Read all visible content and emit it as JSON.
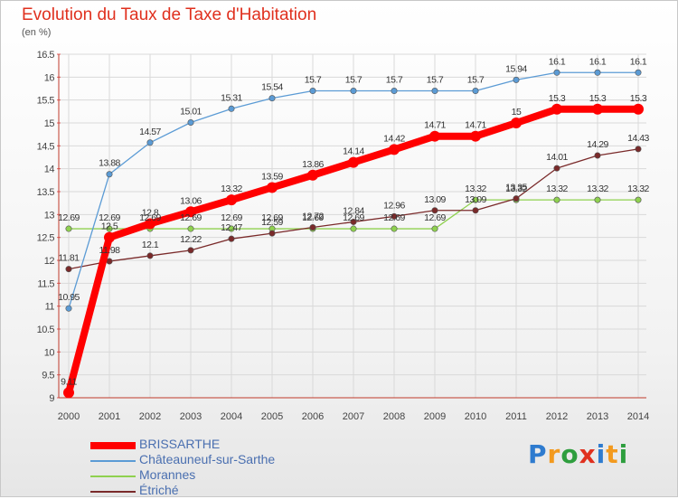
{
  "title": "Evolution du Taux de Taxe d'Habitation",
  "unit_label": "(en %)",
  "logo": {
    "text": "Proxiti",
    "letters": [
      {
        "ch": "P",
        "color": "#2e7bcf"
      },
      {
        "ch": "r",
        "color": "#f39a1e"
      },
      {
        "ch": "o",
        "color": "#2e9e3e"
      },
      {
        "ch": "x",
        "color": "#e0301e"
      },
      {
        "ch": "i",
        "color": "#2e7bcf"
      },
      {
        "ch": "t",
        "color": "#f39a1e"
      },
      {
        "ch": "i",
        "color": "#2e9e3e"
      }
    ]
  },
  "chart_data": {
    "type": "line",
    "x": [
      "2000",
      "2001",
      "2002",
      "2003",
      "2004",
      "2005",
      "2006",
      "2007",
      "2008",
      "2009",
      "2010",
      "2011",
      "2012",
      "2013",
      "2014"
    ],
    "ylim": [
      9,
      16.5
    ],
    "yticks": [
      "9",
      "9.5",
      "10",
      "10.5",
      "11",
      "11.5",
      "12",
      "12.5",
      "13",
      "13.5",
      "14",
      "14.5",
      "15",
      "15.5",
      "16",
      "16.5"
    ],
    "grid": true,
    "legend_position": "bottom-left",
    "series": [
      {
        "name": "BRISSARTHE",
        "color": "#ff0000",
        "values": [
          9.11,
          12.5,
          12.8,
          13.06,
          13.32,
          13.59,
          13.86,
          14.14,
          14.42,
          14.71,
          14.71,
          15,
          15.3,
          15.3,
          15.3
        ],
        "labels": [
          "9.11",
          "12.5",
          "12.8",
          "13.06",
          "13.32",
          "13.59",
          "13.86",
          "14.14",
          "14.42",
          "14.71",
          "14.71",
          "15",
          "15.3",
          "15.3",
          "15.3"
        ]
      },
      {
        "name": "Châteauneuf-sur-Sarthe",
        "color": "#5b9bd5",
        "values": [
          10.95,
          13.88,
          14.57,
          15.01,
          15.31,
          15.54,
          15.7,
          15.7,
          15.7,
          15.7,
          15.7,
          15.94,
          16.1,
          16.1,
          16.1
        ],
        "labels": [
          "10.95",
          "13.88",
          "14.57",
          "15.01",
          "15.31",
          "15.54",
          "15.7",
          "15.7",
          "15.7",
          "15.7",
          "15.7",
          "15.94",
          "16.1",
          "16.1",
          "16.1"
        ]
      },
      {
        "name": "Morannes",
        "color": "#8fd14f",
        "values": [
          12.69,
          12.69,
          12.69,
          12.69,
          12.69,
          12.69,
          12.69,
          12.69,
          12.69,
          12.69,
          13.32,
          13.32,
          13.32,
          13.32,
          13.32
        ],
        "labels": [
          "12.69",
          "12.69",
          "12.69",
          "12.69",
          "12.69",
          "12.69",
          "12.69",
          "12.69",
          "12.69",
          "12.69",
          "13.32",
          "13.32",
          "13.32",
          "13.32",
          "13.32"
        ]
      },
      {
        "name": "Étriché",
        "color": "#7a2a2a",
        "values": [
          11.81,
          11.98,
          12.1,
          12.22,
          12.47,
          12.59,
          12.72,
          12.84,
          12.96,
          13.09,
          13.09,
          13.35,
          14.01,
          14.29,
          14.43
        ],
        "labels": [
          "11.81",
          "11.98",
          "12.1",
          "12.22",
          "12.47",
          "12.59",
          "12.72",
          "12.84",
          "12.96",
          "13.09",
          "13.09",
          "13.35",
          "14.01",
          "14.29",
          "14.43"
        ]
      }
    ]
  }
}
